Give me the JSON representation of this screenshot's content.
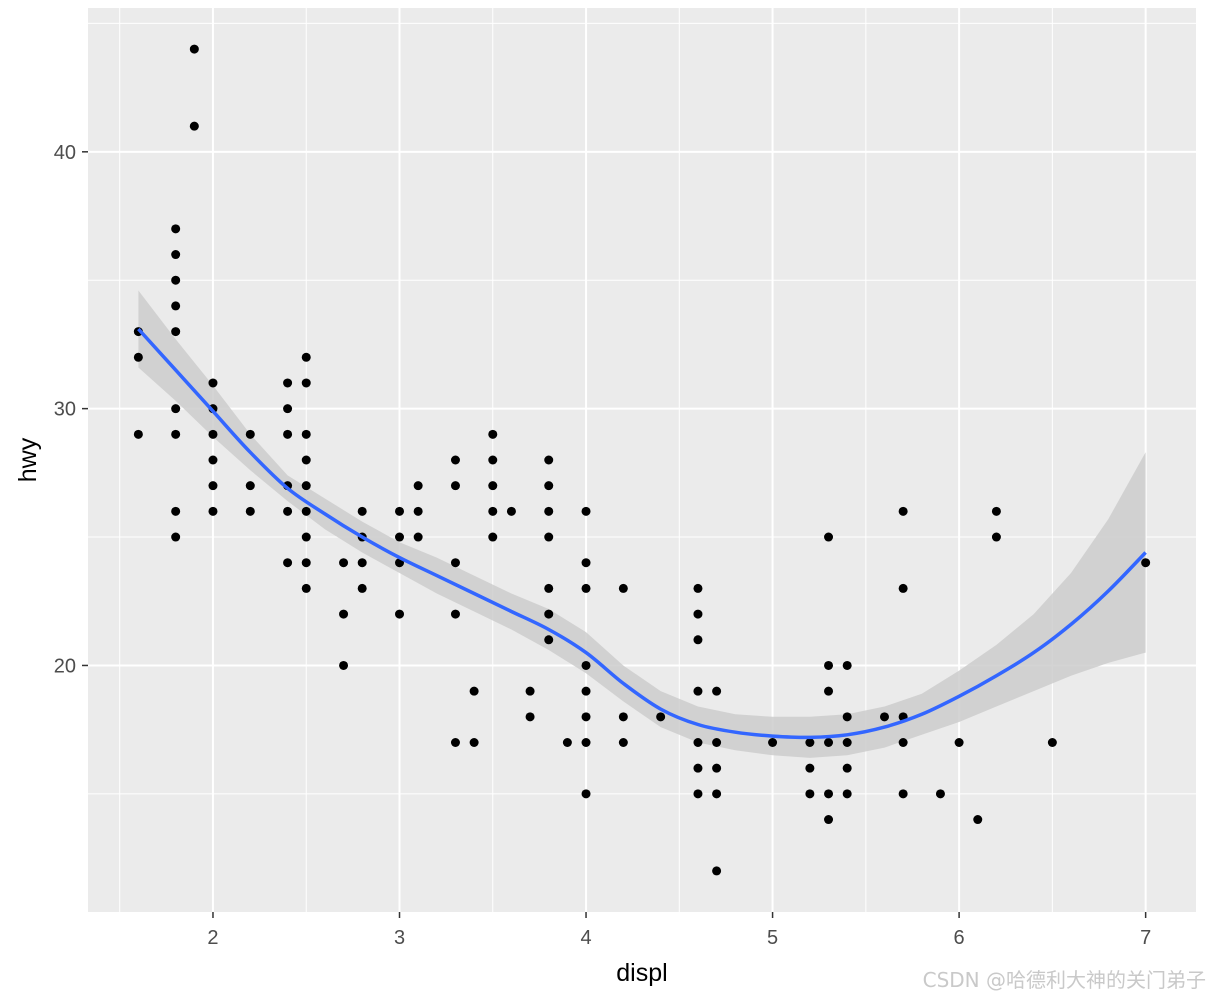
{
  "chart_data": {
    "type": "scatter",
    "title": "",
    "xlabel": "displ",
    "ylabel": "hwy",
    "xlim": [
      1.33,
      7.27
    ],
    "ylim": [
      10.4,
      45.6
    ],
    "xticks": [
      2,
      3,
      4,
      5,
      6,
      7
    ],
    "xminor": [
      1.5,
      2.5,
      3.5,
      4.5,
      5.5,
      6.5
    ],
    "yticks": [
      20,
      30,
      40
    ],
    "yminor": [
      15,
      25,
      35,
      45
    ],
    "grid": true,
    "legend": "none",
    "colors": {
      "panel": "#ebebeb",
      "grid": "#ffffff",
      "points": "#000000",
      "smooth_line": "#3366ff",
      "ribbon": "#cccccc"
    },
    "points": [
      [
        1.6,
        33
      ],
      [
        1.6,
        32
      ],
      [
        1.6,
        29
      ],
      [
        1.8,
        37
      ],
      [
        1.8,
        36
      ],
      [
        1.8,
        35
      ],
      [
        1.8,
        34
      ],
      [
        1.8,
        33
      ],
      [
        1.8,
        30
      ],
      [
        1.8,
        29
      ],
      [
        1.8,
        26
      ],
      [
        1.8,
        25
      ],
      [
        1.9,
        44
      ],
      [
        1.9,
        41
      ],
      [
        2.0,
        31
      ],
      [
        2.0,
        30
      ],
      [
        2.0,
        29
      ],
      [
        2.0,
        28
      ],
      [
        2.0,
        27
      ],
      [
        2.0,
        26
      ],
      [
        2.2,
        29
      ],
      [
        2.2,
        27
      ],
      [
        2.2,
        26
      ],
      [
        2.4,
        31
      ],
      [
        2.4,
        30
      ],
      [
        2.4,
        29
      ],
      [
        2.4,
        27
      ],
      [
        2.4,
        26
      ],
      [
        2.4,
        24
      ],
      [
        2.5,
        32
      ],
      [
        2.5,
        31
      ],
      [
        2.5,
        29
      ],
      [
        2.5,
        28
      ],
      [
        2.5,
        27
      ],
      [
        2.5,
        26
      ],
      [
        2.5,
        25
      ],
      [
        2.5,
        24
      ],
      [
        2.5,
        23
      ],
      [
        2.7,
        24
      ],
      [
        2.7,
        22
      ],
      [
        2.7,
        20
      ],
      [
        2.8,
        26
      ],
      [
        2.8,
        25
      ],
      [
        2.8,
        24
      ],
      [
        2.8,
        23
      ],
      [
        3.0,
        26
      ],
      [
        3.0,
        25
      ],
      [
        3.0,
        24
      ],
      [
        3.0,
        22
      ],
      [
        3.1,
        27
      ],
      [
        3.1,
        26
      ],
      [
        3.1,
        25
      ],
      [
        3.3,
        28
      ],
      [
        3.3,
        27
      ],
      [
        3.3,
        24
      ],
      [
        3.3,
        22
      ],
      [
        3.3,
        17
      ],
      [
        3.4,
        19
      ],
      [
        3.4,
        17
      ],
      [
        3.5,
        29
      ],
      [
        3.5,
        28
      ],
      [
        3.5,
        27
      ],
      [
        3.5,
        26
      ],
      [
        3.5,
        25
      ],
      [
        3.6,
        26
      ],
      [
        3.7,
        19
      ],
      [
        3.7,
        18
      ],
      [
        3.8,
        28
      ],
      [
        3.8,
        27
      ],
      [
        3.8,
        26
      ],
      [
        3.8,
        25
      ],
      [
        3.8,
        23
      ],
      [
        3.8,
        22
      ],
      [
        3.8,
        21
      ],
      [
        3.9,
        17
      ],
      [
        4.0,
        26
      ],
      [
        4.0,
        24
      ],
      [
        4.0,
        23
      ],
      [
        4.0,
        20
      ],
      [
        4.0,
        19
      ],
      [
        4.0,
        18
      ],
      [
        4.0,
        17
      ],
      [
        4.0,
        15
      ],
      [
        4.2,
        23
      ],
      [
        4.2,
        18
      ],
      [
        4.2,
        17
      ],
      [
        4.4,
        18
      ],
      [
        4.6,
        23
      ],
      [
        4.6,
        22
      ],
      [
        4.6,
        21
      ],
      [
        4.6,
        19
      ],
      [
        4.6,
        17
      ],
      [
        4.6,
        16
      ],
      [
        4.6,
        15
      ],
      [
        4.7,
        19
      ],
      [
        4.7,
        17
      ],
      [
        4.7,
        16
      ],
      [
        4.7,
        15
      ],
      [
        4.7,
        12
      ],
      [
        5.0,
        17
      ],
      [
        5.2,
        17
      ],
      [
        5.2,
        16
      ],
      [
        5.2,
        15
      ],
      [
        5.3,
        25
      ],
      [
        5.3,
        20
      ],
      [
        5.3,
        19
      ],
      [
        5.3,
        17
      ],
      [
        5.3,
        15
      ],
      [
        5.3,
        14
      ],
      [
        5.4,
        20
      ],
      [
        5.4,
        18
      ],
      [
        5.4,
        17
      ],
      [
        5.4,
        16
      ],
      [
        5.4,
        15
      ],
      [
        5.6,
        18
      ],
      [
        5.7,
        26
      ],
      [
        5.7,
        23
      ],
      [
        5.7,
        18
      ],
      [
        5.7,
        17
      ],
      [
        5.7,
        15
      ],
      [
        5.9,
        15
      ],
      [
        6.0,
        17
      ],
      [
        6.1,
        14
      ],
      [
        6.2,
        26
      ],
      [
        6.2,
        25
      ],
      [
        6.5,
        17
      ],
      [
        7.0,
        24
      ]
    ],
    "smooth": {
      "method": "loess",
      "x": [
        1.6,
        1.8,
        2.0,
        2.2,
        2.4,
        2.6,
        2.8,
        3.0,
        3.2,
        3.4,
        3.6,
        3.8,
        4.0,
        4.2,
        4.4,
        4.6,
        4.8,
        5.0,
        5.2,
        5.4,
        5.6,
        5.8,
        6.0,
        6.2,
        6.4,
        6.6,
        6.8,
        7.0
      ],
      "y": [
        33.1,
        31.5,
        29.9,
        28.3,
        26.9,
        25.9,
        25.0,
        24.2,
        23.5,
        22.8,
        22.1,
        21.4,
        20.5,
        19.3,
        18.3,
        17.7,
        17.4,
        17.25,
        17.2,
        17.3,
        17.6,
        18.1,
        18.8,
        19.6,
        20.5,
        21.6,
        22.9,
        24.4
      ],
      "lower": [
        31.6,
        30.3,
        28.9,
        27.6,
        26.4,
        25.3,
        24.4,
        23.6,
        22.8,
        22.1,
        21.4,
        20.6,
        19.7,
        18.6,
        17.6,
        17.0,
        16.7,
        16.5,
        16.4,
        16.5,
        16.8,
        17.3,
        17.8,
        18.4,
        19.0,
        19.6,
        20.1,
        20.5
      ],
      "upper": [
        34.6,
        32.7,
        30.9,
        29.0,
        27.4,
        26.5,
        25.6,
        24.8,
        24.2,
        23.5,
        22.8,
        22.2,
        21.3,
        20.0,
        19.0,
        18.4,
        18.1,
        18.0,
        18.0,
        18.1,
        18.4,
        18.9,
        19.8,
        20.8,
        22.0,
        23.6,
        25.7,
        28.3
      ]
    }
  },
  "watermark": "CSDN @哈德利大神的关门弟子"
}
